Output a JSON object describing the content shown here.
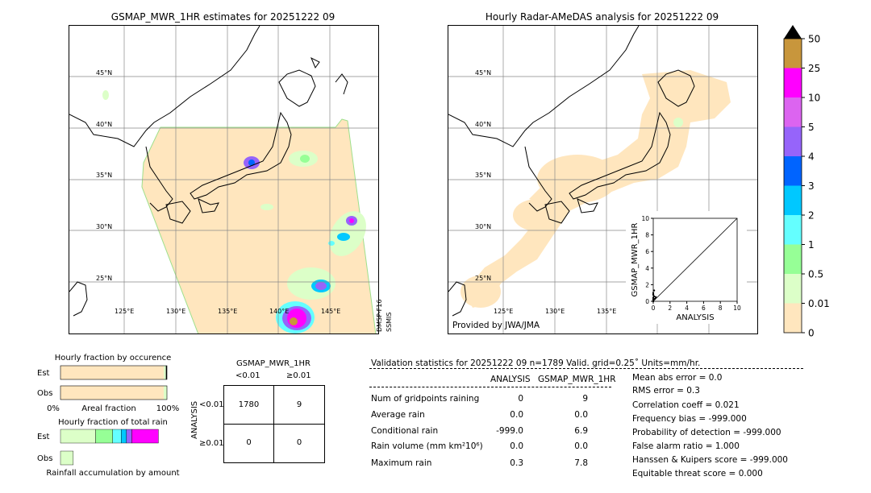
{
  "left_map": {
    "title": "GSMAP_MWR_1HR estimates for 20251222 09",
    "lat_labels": [
      "45°N",
      "40°N",
      "35°N",
      "30°N",
      "25°N"
    ],
    "lon_labels": [
      "125°E",
      "130°E",
      "135°E",
      "140°E",
      "145°E"
    ],
    "side_label_1": "DMSP-F16",
    "side_label_2": "SSMIS"
  },
  "right_map": {
    "title": "Hourly Radar-AMeDAS analysis for 20251222 09",
    "lat_labels": [
      "45°N",
      "40°N",
      "35°N",
      "30°N",
      "25°N"
    ],
    "lon_labels": [
      "125°E",
      "130°E",
      "135°E"
    ],
    "provided_by": "Provided by JWA/JMA"
  },
  "colorbar": {
    "labels": [
      "50",
      "25",
      "10",
      "5",
      "4",
      "3",
      "2",
      "1",
      "0.5",
      "0.01",
      "0"
    ],
    "colors": [
      "#c8963c",
      "#ff00ff",
      "#dc64f0",
      "#9664fa",
      "#0064ff",
      "#00c8ff",
      "#64ffff",
      "#96ff96",
      "#dcffc8",
      "#ffe6be"
    ]
  },
  "chart_data": [
    {
      "type": "scatter",
      "xlabel": "ANALYSIS",
      "ylabel": "GSMAP_MWR_1HR",
      "xlim": [
        0,
        10
      ],
      "ylim": [
        0,
        10
      ],
      "xticks": [
        "0",
        "2",
        "4",
        "6",
        "8",
        "10"
      ],
      "yticks": [
        "0",
        "2",
        "4",
        "6",
        "8",
        "10"
      ],
      "points": [
        [
          0,
          0
        ],
        [
          0,
          0.2
        ],
        [
          0,
          0.4
        ],
        [
          0.1,
          0.6
        ],
        [
          0,
          0.8
        ],
        [
          0.2,
          0.3
        ],
        [
          0.3,
          0.5
        ],
        [
          0,
          1.0
        ],
        [
          0.1,
          1.3
        ]
      ],
      "diagonal": true
    },
    {
      "type": "bar",
      "title": "Hourly fraction by occurence",
      "categories": [
        "Est",
        "Obs"
      ],
      "series": [
        {
          "values": [
            0.97,
            0.97
          ],
          "color": "#ffe6be"
        },
        {
          "values": [
            0.02,
            0.03
          ],
          "color": "#dcffc8"
        },
        {
          "values": [
            0.01,
            0.0
          ],
          "color": "#000000"
        }
      ],
      "xlabel": "Areal fraction",
      "xtick_left": "0%",
      "xtick_right": "100%"
    },
    {
      "type": "bar",
      "title": "Hourly fraction of total rain",
      "categories": [
        "Est",
        "Obs"
      ],
      "series": [
        {
          "values": [
            0.33,
            0.12
          ],
          "color": "#dcffc8"
        },
        {
          "values": [
            0.16,
            0.0
          ],
          "color": "#96ff96"
        },
        {
          "values": [
            0.08,
            0.0
          ],
          "color": "#64ffff"
        },
        {
          "values": [
            0.05,
            0.0
          ],
          "color": "#00c8ff"
        },
        {
          "values": [
            0.05,
            0.0
          ],
          "color": "#9664fa"
        },
        {
          "values": [
            0.25,
            0.0
          ],
          "color": "#ff00ff"
        }
      ],
      "xlabel": "Rainfall accumulation by amount"
    }
  ],
  "contingency": {
    "title": "GSMAP_MWR_1HR",
    "col_headers": [
      "<0.01",
      "≥0.01"
    ],
    "row_axis": "ANALYSIS",
    "row_headers": [
      "<0.01",
      "≥0.01"
    ],
    "cells": [
      [
        "1780",
        "9"
      ],
      [
        "0",
        "0"
      ]
    ]
  },
  "validation": {
    "header": "Validation statistics for 20251222 09  n=1789 Valid. grid=0.25˚ Units=mm/hr.",
    "col1": "ANALYSIS",
    "col2": "GSMAP_MWR_1HR",
    "rows": [
      {
        "label": "Num of gridpoints raining",
        "a": "0",
        "b": "9"
      },
      {
        "label": "Average rain",
        "a": "0.0",
        "b": "0.0"
      },
      {
        "label": "Conditional rain",
        "a": "-999.0",
        "b": "6.9"
      },
      {
        "label": "Rain volume (mm km²10⁶)",
        "a": "0.0",
        "b": "0.0"
      },
      {
        "label": "Maximum rain",
        "a": "0.3",
        "b": "7.8"
      }
    ],
    "scores": [
      "Mean abs error =    0.0",
      "RMS error =    0.3",
      "Correlation coeff =  0.021",
      "Frequency bias = -999.000",
      "Probability of detection = -999.000",
      "False alarm ratio =  1.000",
      "Hanssen & Kuipers score = -999.000",
      "Equitable threat score =  0.000"
    ]
  }
}
